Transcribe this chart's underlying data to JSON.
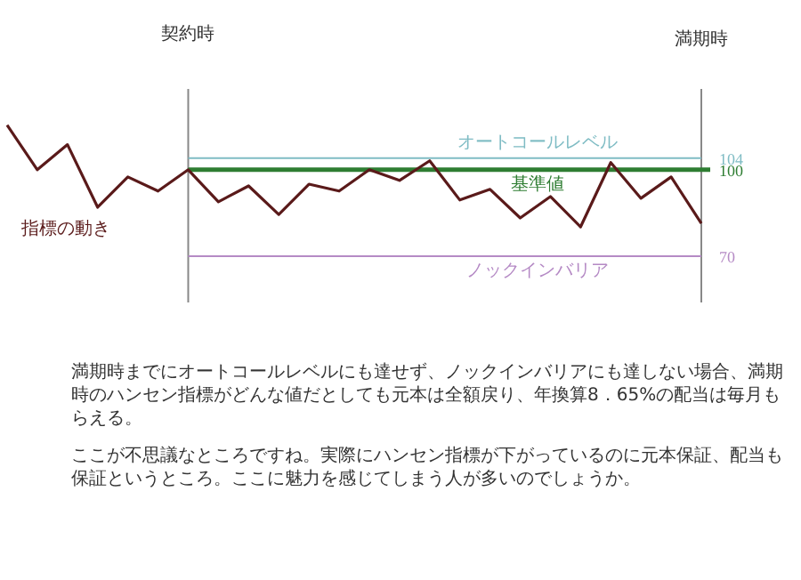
{
  "chart_data": {
    "type": "line",
    "categories": [
      null,
      null,
      null,
      null,
      null,
      null,
      "契約時",
      null,
      null,
      null,
      null,
      null,
      null,
      null,
      null,
      null,
      null,
      null,
      null,
      null,
      null,
      null,
      null,
      "満期時"
    ],
    "series": [
      {
        "name": "指標の動き",
        "color": "#5a1a1a",
        "values": [
          115.5,
          100,
          108.7,
          87,
          97.5,
          92.6,
          100,
          88.9,
          94.4,
          84.5,
          95,
          92.6,
          100,
          96.3,
          103.1,
          89.5,
          93.2,
          83.3,
          90.7,
          80.2,
          102.5,
          90.1,
          97.5,
          81.4
        ]
      }
    ],
    "ylim": [
      54,
      128
    ],
    "yticks": [
      70,
      100,
      104
    ],
    "marker": "none",
    "line_style": "solid",
    "ref_lines": [
      {
        "axis": "y",
        "value": 104,
        "label": "オートコールレベル",
        "color": "#7fbcc4"
      },
      {
        "axis": "y",
        "value": 100,
        "label": "基準値",
        "color": "#2e7d32"
      },
      {
        "axis": "y",
        "value": 70,
        "label": "ノックインバリア",
        "color": "#b58ac5"
      }
    ],
    "annotations": [
      "満期時までにオートコールレベルにも達せず、ノックインバリアにも達しない場合、満期時のハンセン指標がどんな値だとしても元本は全額戻り、年換算8．65%の配当は毎月もらえる。",
      "ここが不思議なところですね。実際にハンセン指標が下がっているのに元本保証、配当も保証というところ。ここに魅力を感じてしまう人が多いのでしょうか。"
    ]
  }
}
